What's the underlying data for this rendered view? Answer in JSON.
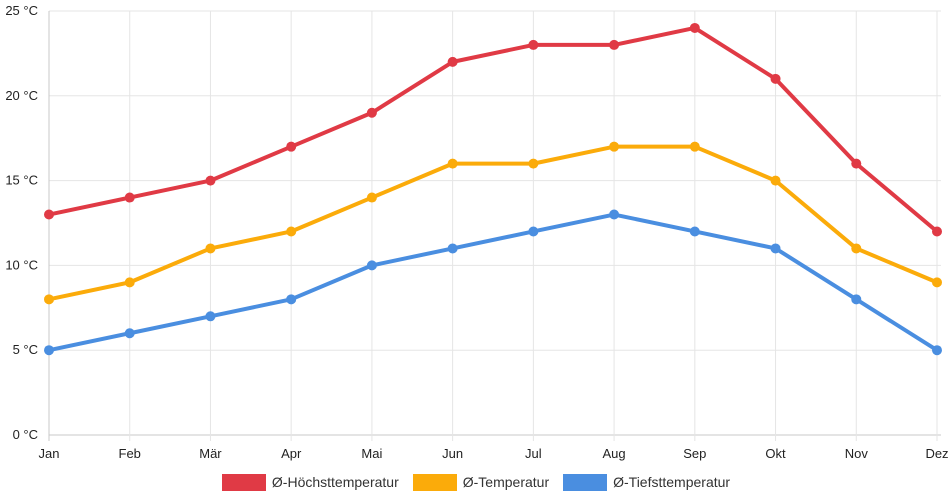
{
  "chart_data": {
    "type": "line",
    "categories": [
      "Jan",
      "Feb",
      "Mär",
      "Apr",
      "Mai",
      "Jun",
      "Jul",
      "Aug",
      "Sep",
      "Okt",
      "Nov",
      "Dez"
    ],
    "yticks": [
      "0 °C",
      "5 °C",
      "10 °C",
      "15 °C",
      "20 °C",
      "25 °C"
    ],
    "ylim": [
      0,
      25
    ],
    "grid": true,
    "legend_position": "bottom",
    "series": [
      {
        "name": "Ø-Höchsttemperatur",
        "color": "#e03a45",
        "values": [
          13,
          14,
          15,
          17,
          19,
          22,
          23,
          23,
          24,
          21,
          16,
          12
        ]
      },
      {
        "name": "Ø-Temperatur",
        "color": "#fbab0a",
        "values": [
          8,
          9,
          11,
          12,
          14,
          16,
          16,
          17,
          17,
          15,
          11,
          9
        ]
      },
      {
        "name": "Ø-Tiefsttemperatur",
        "color": "#4a8ee0",
        "values": [
          5,
          6,
          7,
          8,
          10,
          11,
          12,
          13,
          12,
          11,
          8,
          5
        ]
      }
    ]
  }
}
